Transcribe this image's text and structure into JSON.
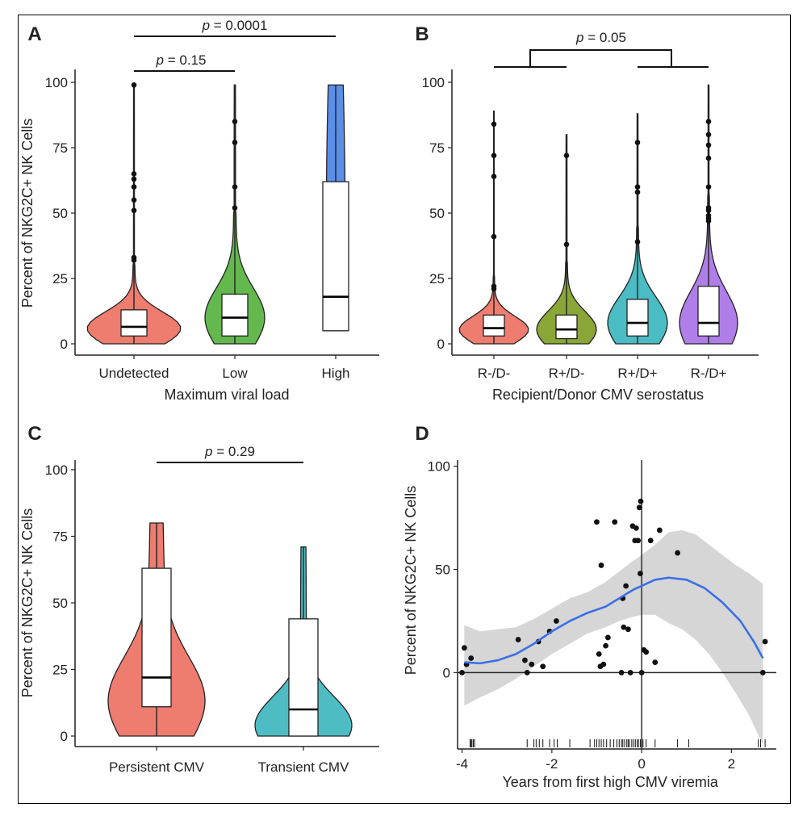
{
  "chart_data": [
    {
      "panel": "A",
      "type": "violin",
      "categories": [
        "Undetected",
        "Low",
        "High"
      ],
      "colors": [
        "#ee7c6f",
        "#63b94e",
        "#5b8ee6"
      ],
      "xlabel": "Maximum viral load",
      "ylabel": "Percent of NKG2C+ NK Cells",
      "ylim": [
        0,
        100
      ],
      "yticks": [
        0,
        25,
        50,
        75,
        100
      ],
      "boxes": [
        {
          "q1": 3,
          "median": 6.5,
          "q3": 13,
          "wlo": 0,
          "whi": 99
        },
        {
          "q1": 3,
          "median": 10,
          "q3": 19,
          "wlo": 0,
          "whi": 99
        },
        {
          "q1": 5,
          "median": 18,
          "q3": 62,
          "wlo": 5,
          "whi": 99
        }
      ],
      "outliers": [
        [
          99,
          65,
          63,
          60,
          55,
          51,
          33,
          32
        ],
        [
          85,
          77,
          60,
          52
        ],
        []
      ],
      "brackets": [
        {
          "from": 0,
          "to": 1,
          "text": "= 0.15"
        },
        {
          "from": 0,
          "to": 2,
          "text": "= 0.0001"
        }
      ]
    },
    {
      "panel": "B",
      "type": "violin",
      "categories": [
        "R-/D-",
        "R+/D-",
        "R+/D+",
        "R-/D+"
      ],
      "colors": [
        "#ee7c6f",
        "#8aa636",
        "#4bbcc4",
        "#b07ee8"
      ],
      "xlabel": "Recipient/Donor CMV serostatus",
      "ylim": [
        0,
        100
      ],
      "yticks": [
        0,
        25,
        50,
        75,
        100
      ],
      "boxes": [
        {
          "q1": 3,
          "median": 6,
          "q3": 11,
          "wlo": 0,
          "whi": 89
        },
        {
          "q1": 2,
          "median": 5.5,
          "q3": 11,
          "wlo": 0,
          "whi": 80
        },
        {
          "q1": 3,
          "median": 8,
          "q3": 17,
          "wlo": 0,
          "whi": 88
        },
        {
          "q1": 3,
          "median": 8,
          "q3": 22,
          "wlo": 0,
          "whi": 99
        }
      ],
      "outliers": [
        [
          84,
          72,
          64,
          41,
          22,
          21
        ],
        [
          72,
          38
        ],
        [
          77,
          60,
          58,
          39
        ],
        [
          85,
          80,
          76,
          71,
          60,
          52,
          51,
          49,
          48,
          47
        ]
      ],
      "group_bracket": {
        "text": "= 0.05"
      }
    },
    {
      "panel": "C",
      "type": "violin",
      "categories": [
        "Persistent CMV",
        "Transient CMV"
      ],
      "colors": [
        "#ee7c6f",
        "#4dbdc3"
      ],
      "ylabel": "Percent of NKG2C+ NK Cells",
      "ylim": [
        0,
        100
      ],
      "yticks": [
        0,
        25,
        50,
        75,
        100
      ],
      "boxes": [
        {
          "q1": 11,
          "median": 22,
          "q3": 63,
          "wlo": 0,
          "whi": 80
        },
        {
          "q1": 0,
          "median": 10,
          "q3": 44,
          "wlo": 0,
          "whi": 71
        }
      ],
      "brackets": [
        {
          "from": 0,
          "to": 1,
          "text": "= 0.29"
        }
      ]
    },
    {
      "panel": "D",
      "type": "scatter",
      "xlabel": "Years from first high CMV viremia",
      "ylabel": "Percent of NKG2C+ NK Cells",
      "xlim": [
        -4.1,
        3.0
      ],
      "ylim": [
        -37,
        103
      ],
      "xticks": [
        -4,
        -2,
        0,
        2
      ],
      "yticks": [
        0,
        50,
        100
      ],
      "points": [
        [
          -4.0,
          0
        ],
        [
          -3.95,
          12
        ],
        [
          -3.9,
          4
        ],
        [
          -3.8,
          7
        ],
        [
          -2.75,
          16
        ],
        [
          -2.6,
          6
        ],
        [
          -2.55,
          0
        ],
        [
          -2.45,
          4
        ],
        [
          -2.3,
          15
        ],
        [
          -2.2,
          3
        ],
        [
          -2.05,
          20
        ],
        [
          -1.9,
          25
        ],
        [
          -1.0,
          73
        ],
        [
          -0.95,
          9
        ],
        [
          -0.9,
          52
        ],
        [
          -0.92,
          3
        ],
        [
          -0.85,
          4
        ],
        [
          -0.8,
          13
        ],
        [
          -0.75,
          17
        ],
        [
          -0.6,
          73
        ],
        [
          -0.45,
          0
        ],
        [
          -0.42,
          36
        ],
        [
          -0.4,
          22
        ],
        [
          -0.35,
          42
        ],
        [
          -0.3,
          21
        ],
        [
          -0.25,
          0
        ],
        [
          -0.2,
          71
        ],
        [
          -0.15,
          64
        ],
        [
          -0.12,
          70
        ],
        [
          -0.08,
          64
        ],
        [
          -0.05,
          80
        ],
        [
          -0.02,
          83
        ],
        [
          0.0,
          0
        ],
        [
          -0.03,
          48
        ],
        [
          0.05,
          11
        ],
        [
          0.1,
          10
        ],
        [
          0.2,
          64
        ],
        [
          0.3,
          5
        ],
        [
          0.4,
          69
        ],
        [
          0.8,
          58
        ],
        [
          2.7,
          0
        ],
        [
          2.75,
          15
        ]
      ],
      "smooth": [
        [
          -3.95,
          5
        ],
        [
          -3.6,
          4.5
        ],
        [
          -3.2,
          6
        ],
        [
          -2.8,
          9
        ],
        [
          -2.4,
          14
        ],
        [
          -2.0,
          20
        ],
        [
          -1.6,
          25
        ],
        [
          -1.2,
          29
        ],
        [
          -0.8,
          32
        ],
        [
          -0.5,
          36
        ],
        [
          -0.2,
          40
        ],
        [
          0.0,
          42
        ],
        [
          0.3,
          45
        ],
        [
          0.6,
          46
        ],
        [
          1.0,
          45
        ],
        [
          1.4,
          41
        ],
        [
          1.8,
          34
        ],
        [
          2.2,
          25
        ],
        [
          2.5,
          15
        ],
        [
          2.7,
          7
        ]
      ],
      "ci_upper": [
        [
          -3.95,
          23
        ],
        [
          -3.6,
          20
        ],
        [
          -3.2,
          21
        ],
        [
          -2.8,
          22
        ],
        [
          -2.4,
          26
        ],
        [
          -2.0,
          31
        ],
        [
          -1.6,
          36
        ],
        [
          -1.2,
          39
        ],
        [
          -0.8,
          44
        ],
        [
          -0.5,
          49
        ],
        [
          -0.2,
          54
        ],
        [
          0.0,
          57
        ],
        [
          0.3,
          62
        ],
        [
          0.6,
          68
        ],
        [
          0.9,
          69
        ],
        [
          1.2,
          67
        ],
        [
          1.5,
          62
        ],
        [
          1.8,
          57
        ],
        [
          2.1,
          52
        ],
        [
          2.4,
          48
        ],
        [
          2.7,
          43
        ]
      ],
      "ci_lower": [
        [
          -3.95,
          -16
        ],
        [
          -3.6,
          -12
        ],
        [
          -3.2,
          -8
        ],
        [
          -2.8,
          -3
        ],
        [
          -2.4,
          3
        ],
        [
          -2.0,
          9
        ],
        [
          -1.6,
          14
        ],
        [
          -1.2,
          19
        ],
        [
          -0.8,
          22
        ],
        [
          -0.5,
          25
        ],
        [
          -0.2,
          27
        ],
        [
          0.0,
          28
        ],
        [
          0.3,
          28
        ],
        [
          0.6,
          24
        ],
        [
          0.9,
          21
        ],
        [
          1.2,
          16
        ],
        [
          1.5,
          9
        ],
        [
          1.8,
          0
        ],
        [
          2.1,
          -10
        ],
        [
          2.4,
          -21
        ],
        [
          2.7,
          -35
        ]
      ],
      "rug": [
        -3.82,
        -3.8,
        -3.78,
        -3.75,
        -3.72,
        -2.55,
        -2.4,
        -2.35,
        -2.28,
        -2.2,
        -2.05,
        -1.95,
        -1.88,
        -1.6,
        -1.15,
        -1.05,
        -1.0,
        -0.95,
        -0.9,
        -0.85,
        -0.78,
        -0.7,
        -0.62,
        -0.55,
        -0.5,
        -0.45,
        -0.42,
        -0.38,
        -0.33,
        -0.3,
        -0.27,
        -0.22,
        -0.18,
        -0.14,
        -0.1,
        -0.07,
        -0.03,
        0.0,
        0.03,
        0.1,
        0.3,
        0.8,
        1.05,
        2.6,
        2.65,
        2.75
      ]
    }
  ],
  "p_symbol": "p",
  "panel_letters": [
    "A",
    "B",
    "C",
    "D"
  ]
}
